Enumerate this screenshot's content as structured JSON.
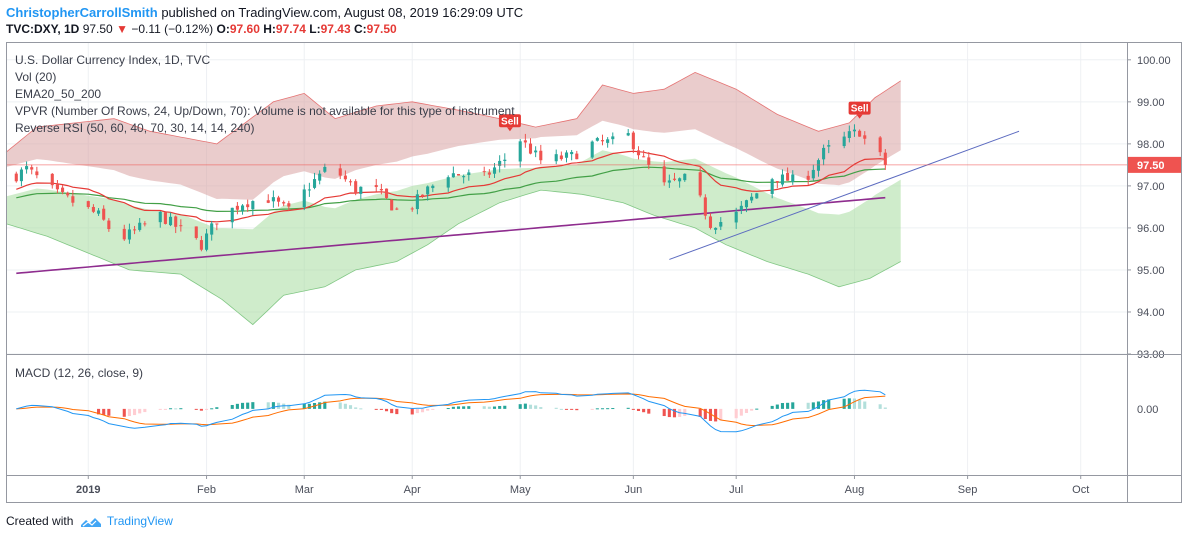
{
  "header": {
    "author": "ChristopherCarrollSmith",
    "published": "published on TradingView.com, August 08, 2019 16:29:09 UTC",
    "symbol": "TVC:DXY, 1D",
    "last": "97.50",
    "change": "−0.11 (−0.12%)",
    "o_label": "O:",
    "o": "97.60",
    "h_label": "H:",
    "h": "97.74",
    "l_label": "L:",
    "l": "97.43",
    "c_label": "C:",
    "c": "97.50"
  },
  "legend": {
    "title": "U.S. Dollar Currency Index, 1D, TVC",
    "vol": "Vol (20)",
    "ema": "EMA20_50_200",
    "vpvr": "VPVR (Number Of Rows, 24, Up/Down, 70): Volume is not available for this type of instrument",
    "rsi": "Reverse RSI (50, 60, 40, 70, 30, 14, 14, 240)",
    "macd": "MACD (12, 26, close, 9)"
  },
  "footer": {
    "created": "Created with",
    "brand": "TradingView"
  },
  "colors": {
    "up": "#26a69a",
    "down": "#ef5350",
    "ema20": "#e53935",
    "ema50": "#43a047",
    "ema200": "#8e2c8e",
    "upper_band": "#d9a3a3",
    "lower_band": "#a8dca0",
    "macd": "#2196f3",
    "signal": "#ff6d00",
    "trendline": "#5c6bc0",
    "price_line": "#ef5350"
  },
  "chart_data": [
    {
      "type": "candlestick",
      "title": "U.S. Dollar Currency Index, 1D, TVC",
      "last_price": 97.5,
      "ylim": [
        93.0,
        100.4
      ],
      "yticks": [
        93.0,
        94.0,
        95.0,
        96.0,
        97.0,
        98.0,
        99.0,
        100.0
      ],
      "ytick_labels": [
        "93.00",
        "94.00",
        "95.00",
        "96.00",
        "97.00",
        "98.00",
        "99.00",
        "100.00"
      ],
      "last_label": "97.50",
      "xticks": [
        {
          "day": 0,
          "label": "2019"
        },
        {
          "day": 23,
          "label": "Feb"
        },
        {
          "day": 42,
          "label": "Mar"
        },
        {
          "day": 63,
          "label": "Apr"
        },
        {
          "day": 84,
          "label": "May"
        },
        {
          "day": 106,
          "label": "Jun"
        },
        {
          "day": 126,
          "label": "Jul"
        },
        {
          "day": 149,
          "label": "Aug"
        },
        {
          "day": 171,
          "label": "Sep"
        },
        {
          "day": 193,
          "label": "Oct"
        }
      ],
      "xlim_days": [
        -16,
        202
      ],
      "sell_signals": [
        {
          "day": 82,
          "price": 98.3,
          "label": "Sell"
        },
        {
          "day": 150,
          "price": 98.6,
          "label": "Sell"
        }
      ],
      "trendline": {
        "from": {
          "day": 113,
          "price": 95.25
        },
        "to": {
          "day": 181,
          "price": 98.3
        }
      },
      "grid": true
    },
    {
      "type": "line",
      "title": "MACD (12, 26, close, 9)",
      "ylim": [
        -1.35,
        1.1
      ],
      "ytick_labels": [
        "0.00"
      ],
      "series": [
        "MACD",
        "Signal",
        "Histogram"
      ],
      "grid": true
    }
  ]
}
